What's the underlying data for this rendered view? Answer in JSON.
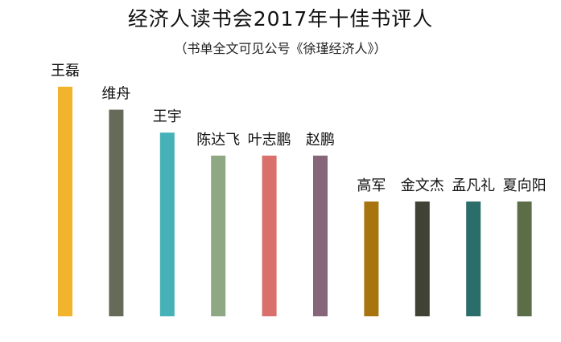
{
  "header": {
    "title": "经济人读书会2017年十佳书评人",
    "subtitle": "（书单全文可见公号《徐瑾经济人》）"
  },
  "chart_data": {
    "type": "bar",
    "title": "经济人读书会2017年十佳书评人",
    "subtitle": "（书单全文可见公号《徐瑾经济人》）",
    "xlabel": "",
    "ylabel": "",
    "grid": false,
    "legend": "none",
    "ylim": [
      0,
      10
    ],
    "categories": [
      "王磊",
      "维舟",
      "王宇",
      "陈达飞",
      "叶志鹏",
      "赵鹏",
      "高军",
      "金文杰",
      "孟凡礼",
      "夏向阳"
    ],
    "values": [
      10,
      9,
      8,
      7,
      7,
      7,
      5,
      5,
      5,
      5
    ],
    "colors": [
      "#f1b42c",
      "#666a58",
      "#46b1b7",
      "#8fa884",
      "#d9706c",
      "#856779",
      "#a87410",
      "#3f4235",
      "#2b6d6b",
      "#5b6e48"
    ]
  }
}
